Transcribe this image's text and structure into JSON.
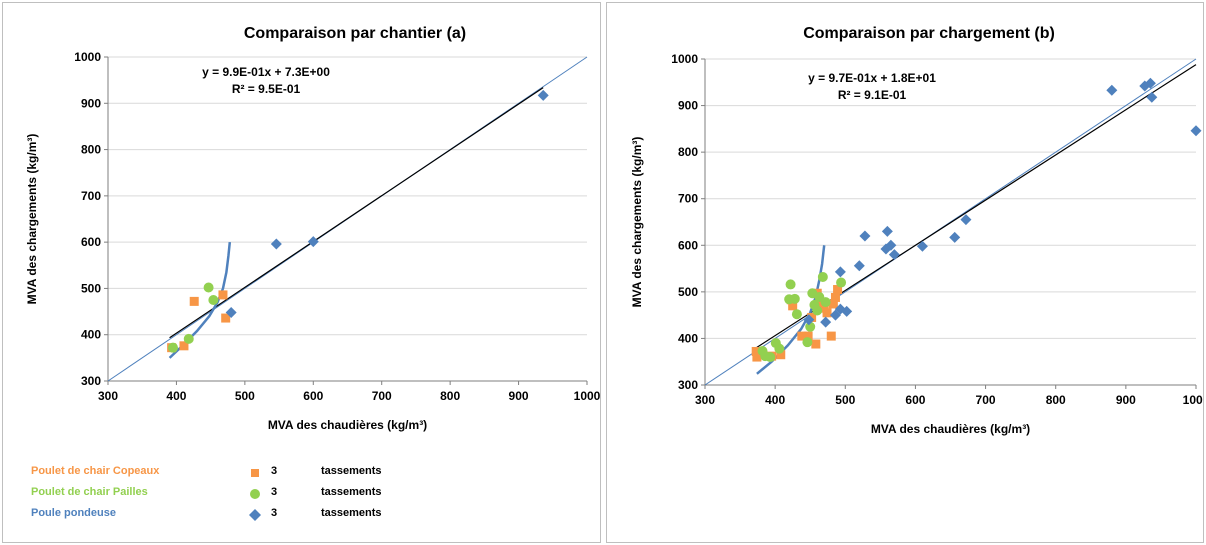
{
  "legend": {
    "items": [
      {
        "name": "Poulet de chair Copeaux",
        "count": "3",
        "unit": "tassements",
        "color": "#f79646",
        "marker": "square"
      },
      {
        "name": "Poulet de chair Pailles",
        "count": "3",
        "unit": "tassements",
        "color": "#92d050",
        "marker": "circle"
      },
      {
        "name": "Poule pondeuse",
        "count": "3",
        "unit": "tassements",
        "color": "#4f81bd",
        "marker": "diamond"
      }
    ]
  },
  "chart_data": [
    {
      "type": "scatter",
      "title": "Comparaison par chantier (a)",
      "xlabel": "MVA des chaudières (kg/m³)",
      "ylabel": "MVA des chargements (kg/m³)",
      "xlim": [
        300,
        1000
      ],
      "ylim": [
        300,
        1000
      ],
      "xticks": [
        "300",
        "400",
        "500",
        "600",
        "700",
        "800",
        "900",
        "1000"
      ],
      "yticks": [
        "300",
        "400",
        "500",
        "600",
        "700",
        "800",
        "900",
        "1000"
      ],
      "equation": "y = 9.9E-01x + 7.3E+00",
      "r2": "R² = 9.5E-01",
      "grid": "horizontal",
      "series": [
        {
          "name": "Poulet de chair Copeaux",
          "color": "#f79646",
          "marker": "square",
          "points": [
            [
              426,
              472
            ],
            [
              411,
              376
            ],
            [
              468,
              486
            ],
            [
              472,
              436
            ],
            [
              393,
              372
            ]
          ]
        },
        {
          "name": "Poulet de chair Pailles",
          "color": "#92d050",
          "marker": "circle",
          "points": [
            [
              447,
              502
            ],
            [
              454,
              475
            ],
            [
              418,
              391
            ],
            [
              395,
              372
            ]
          ]
        },
        {
          "name": "Poule pondeuse",
          "color": "#4f81bd",
          "marker": "diamond",
          "points": [
            [
              936,
              917
            ],
            [
              546,
              596
            ],
            [
              600,
              601
            ],
            [
              480,
              448
            ]
          ]
        }
      ],
      "trendline": {
        "slope": 0.99,
        "intercept": 7.3,
        "x_range": [
          390,
          936
        ],
        "color": "#000000"
      },
      "identity": {
        "color": "#4f81bd"
      },
      "curve": {
        "color": "#4f81bd",
        "points": [
          [
            390,
            350
          ],
          [
            410,
            378
          ],
          [
            430,
            408
          ],
          [
            448,
            440
          ],
          [
            460,
            470
          ],
          [
            468,
            500
          ],
          [
            473,
            535
          ],
          [
            476,
            570
          ],
          [
            478,
            600
          ]
        ]
      }
    },
    {
      "type": "scatter",
      "title": "Comparaison par chargement (b)",
      "xlabel": "MVA  des chaudières (kg/m³)",
      "ylabel": "MVA des chargements (kg/m³)",
      "xlim": [
        300,
        1000
      ],
      "ylim": [
        300,
        1000
      ],
      "xticks": [
        "300",
        "400",
        "500",
        "600",
        "700",
        "800",
        "900",
        "1000"
      ],
      "yticks": [
        "300",
        "400",
        "500",
        "600",
        "700",
        "800",
        "900",
        "1000"
      ],
      "equation": "y = 9.7E-01x + 1.8E+01",
      "r2": "R² = 9.1E-01",
      "grid": "horizontal",
      "series": [
        {
          "name": "Poulet de chair Copeaux",
          "color": "#f79646",
          "marker": "square",
          "points": [
            [
              373,
              372
            ],
            [
              374,
              360
            ],
            [
              395,
              362
            ],
            [
              408,
              365
            ],
            [
              423,
              483
            ],
            [
              425,
              470
            ],
            [
              438,
              405
            ],
            [
              447,
              405
            ],
            [
              452,
              445
            ],
            [
              458,
              388
            ],
            [
              460,
              497
            ],
            [
              467,
              478
            ],
            [
              470,
              465
            ],
            [
              474,
              455
            ],
            [
              480,
              405
            ],
            [
              483,
              474
            ],
            [
              489,
              505
            ],
            [
              486,
              488
            ]
          ]
        },
        {
          "name": "Poulet de chair Pailles",
          "color": "#92d050",
          "marker": "circle",
          "points": [
            [
              382,
              373
            ],
            [
              386,
              362
            ],
            [
              393,
              360
            ],
            [
              401,
              390
            ],
            [
              406,
              378
            ],
            [
              420,
              484
            ],
            [
              422,
              516
            ],
            [
              428,
              485
            ],
            [
              431,
              452
            ],
            [
              446,
              392
            ],
            [
              450,
              425
            ],
            [
              453,
              497
            ],
            [
              456,
              472
            ],
            [
              460,
              460
            ],
            [
              463,
              489
            ],
            [
              468,
              532
            ],
            [
              472,
              478
            ],
            [
              494,
              520
            ]
          ]
        },
        {
          "name": "Poule pondeuse",
          "color": "#4f81bd",
          "marker": "diamond",
          "points": [
            [
              1000,
              846
            ],
            [
              880,
              933
            ],
            [
              927,
              942
            ],
            [
              935,
              948
            ],
            [
              937,
              918
            ],
            [
              560,
              630
            ],
            [
              528,
              620
            ],
            [
              565,
              600
            ],
            [
              558,
              592
            ],
            [
              570,
              580
            ],
            [
              520,
              556
            ],
            [
              610,
              598
            ],
            [
              656,
              617
            ],
            [
              672,
              655
            ],
            [
              493,
              543
            ],
            [
              493,
              463
            ],
            [
              502,
              458
            ],
            [
              486,
              450
            ],
            [
              472,
              435
            ],
            [
              448,
              440
            ]
          ]
        }
      ],
      "trendline": {
        "slope": 0.97,
        "intercept": 18,
        "x_range": [
          372,
          1000
        ],
        "color": "#000000"
      },
      "identity": {
        "color": "#4f81bd"
      },
      "curve": {
        "color": "#4f81bd",
        "points": [
          [
            374,
            324
          ],
          [
            395,
            350
          ],
          [
            418,
            385
          ],
          [
            437,
            420
          ],
          [
            450,
            455
          ],
          [
            458,
            490
          ],
          [
            463,
            525
          ],
          [
            467,
            560
          ],
          [
            470,
            600
          ]
        ]
      }
    }
  ]
}
